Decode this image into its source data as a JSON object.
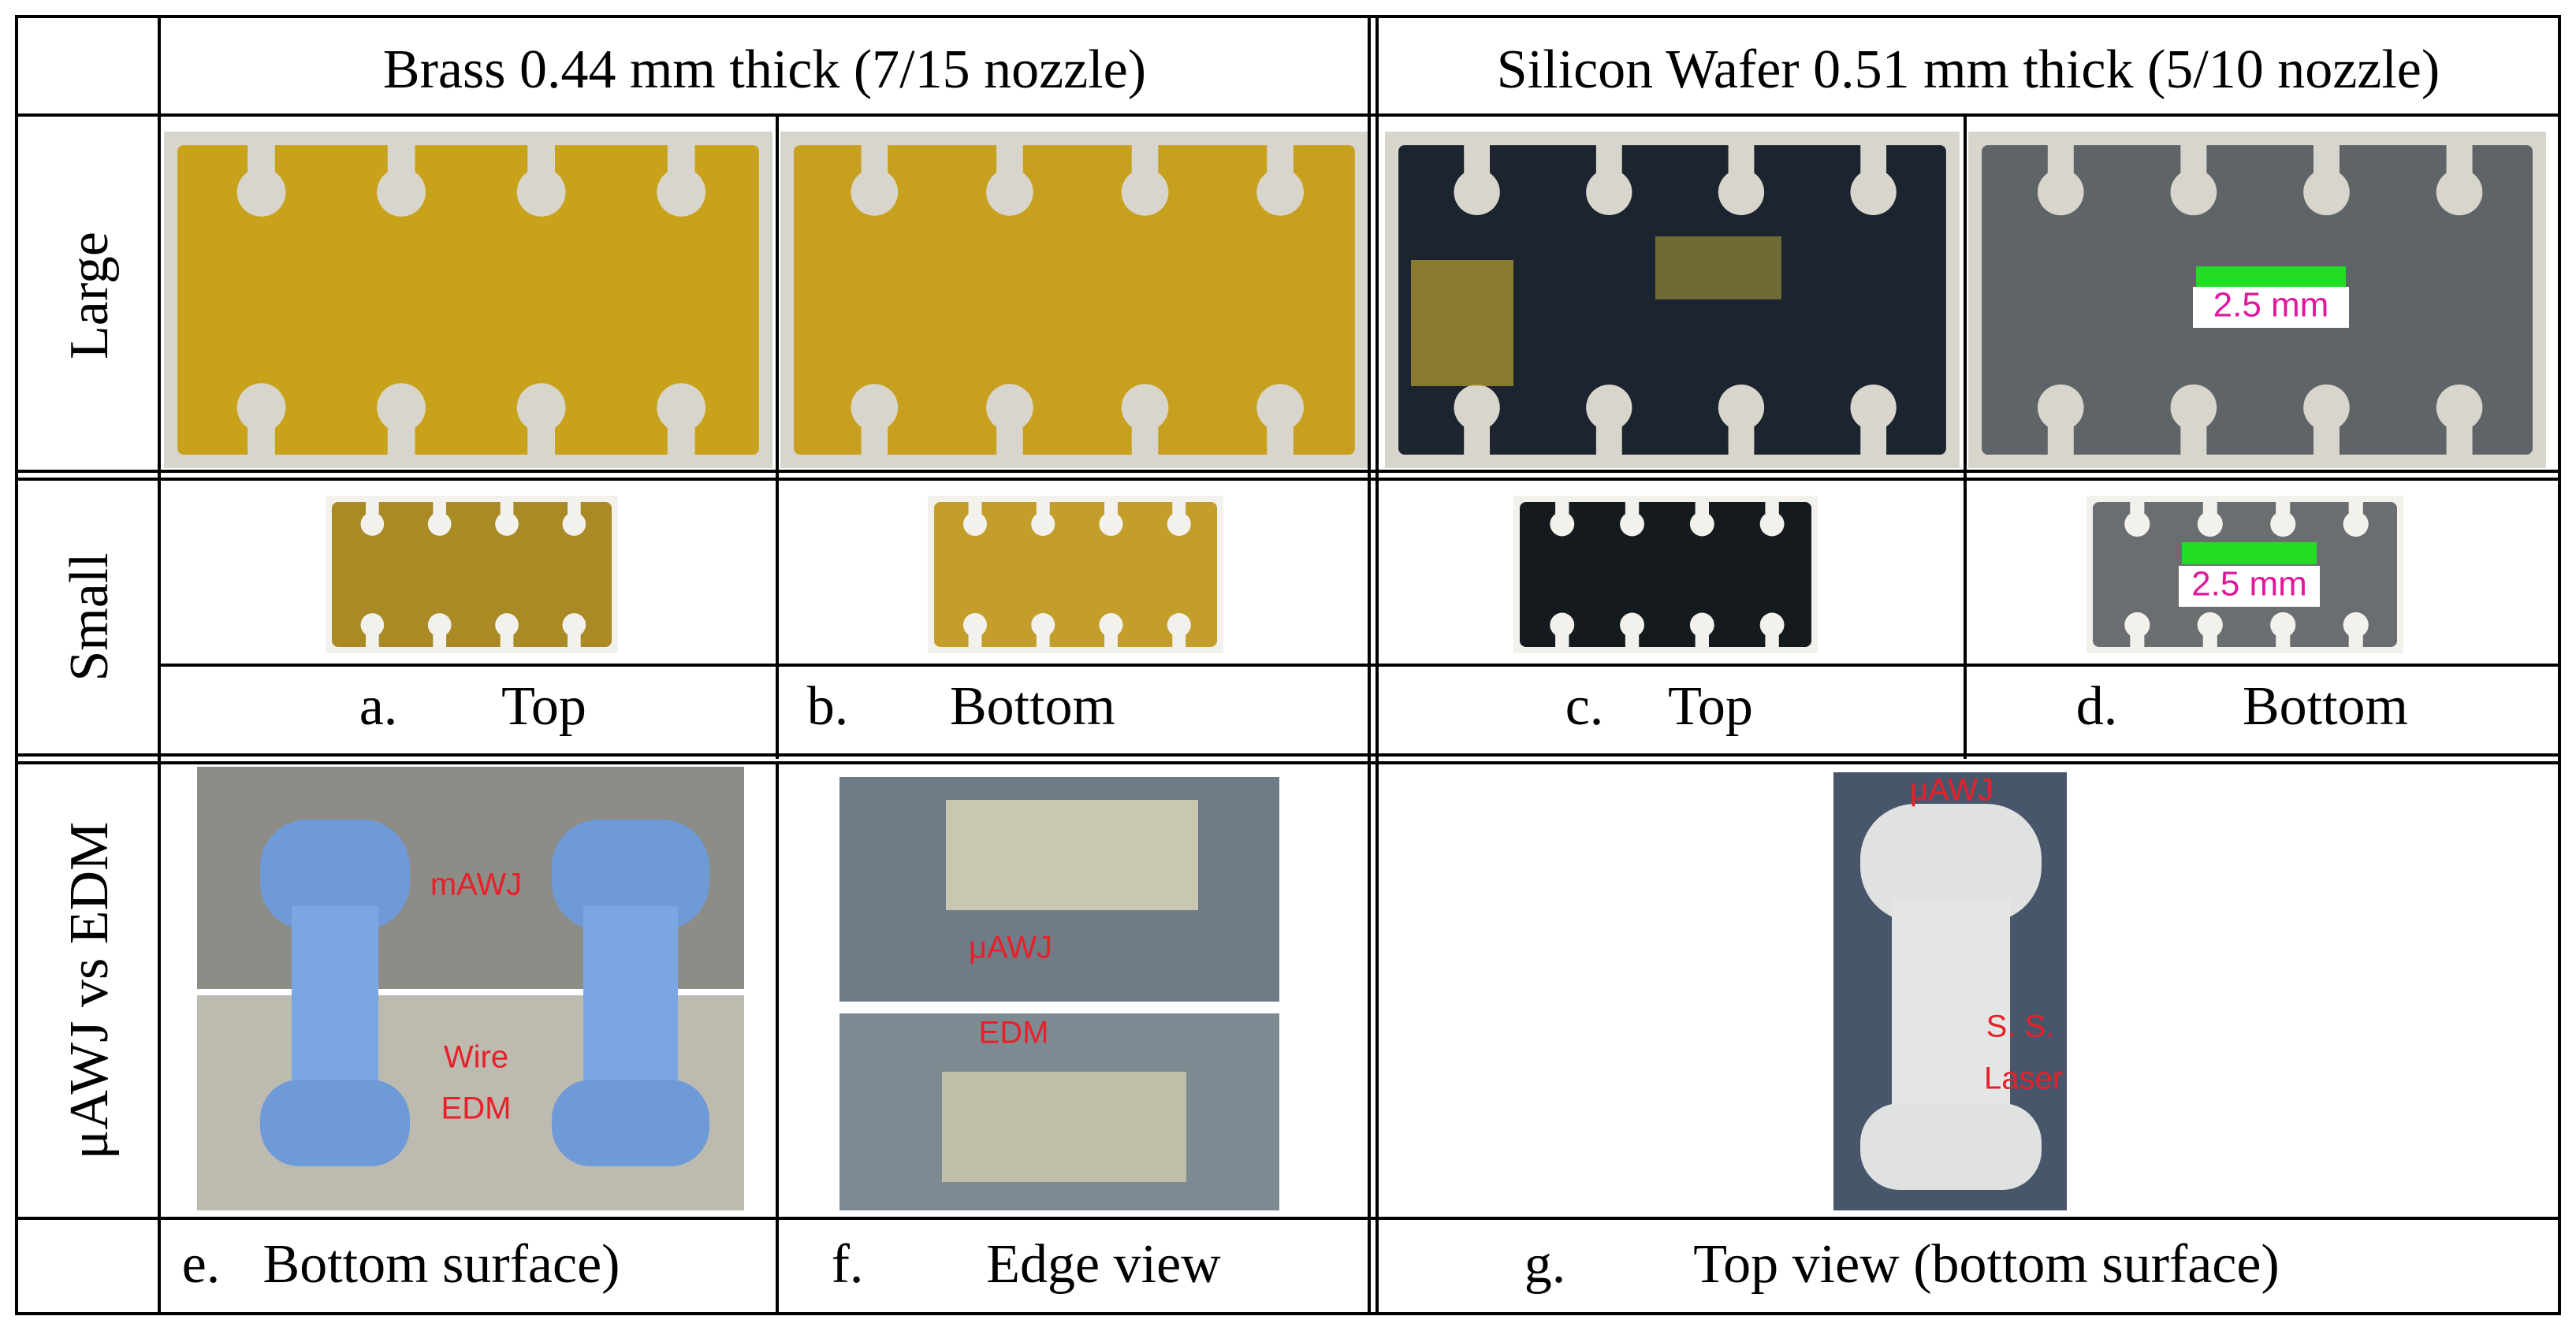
{
  "header": {
    "brass": "Brass 0.44 mm thick (7/15 nozzle)",
    "silicon": "Silicon Wafer 0.51 mm thick (5/10 nozzle)"
  },
  "rows": {
    "large": "Large",
    "small": "Small",
    "comparison": "μAWJ vs EDM"
  },
  "captions": [
    {
      "letter": "a.",
      "text": "Top"
    },
    {
      "letter": "b.",
      "text": "Bottom"
    },
    {
      "letter": "c.",
      "text": "Top"
    },
    {
      "letter": "d.",
      "text": "Bottom"
    },
    {
      "letter": "e.",
      "text": "Bottom surface)"
    },
    {
      "letter": "f.",
      "text": "Edge view"
    },
    {
      "letter": "g.",
      "text": "Top view (bottom surface)"
    }
  ],
  "image_labels": {
    "scale_large": "2.5 mm",
    "scale_small": "2.5 mm",
    "e_top": "mAWJ",
    "e_bottom_1": "Wire",
    "e_bottom_2": "EDM",
    "f_top": "μAWJ",
    "f_bottom": "EDM",
    "g_top": "μAWJ",
    "g_bottom_1": "S. S.",
    "g_bottom_2": "Laser"
  }
}
